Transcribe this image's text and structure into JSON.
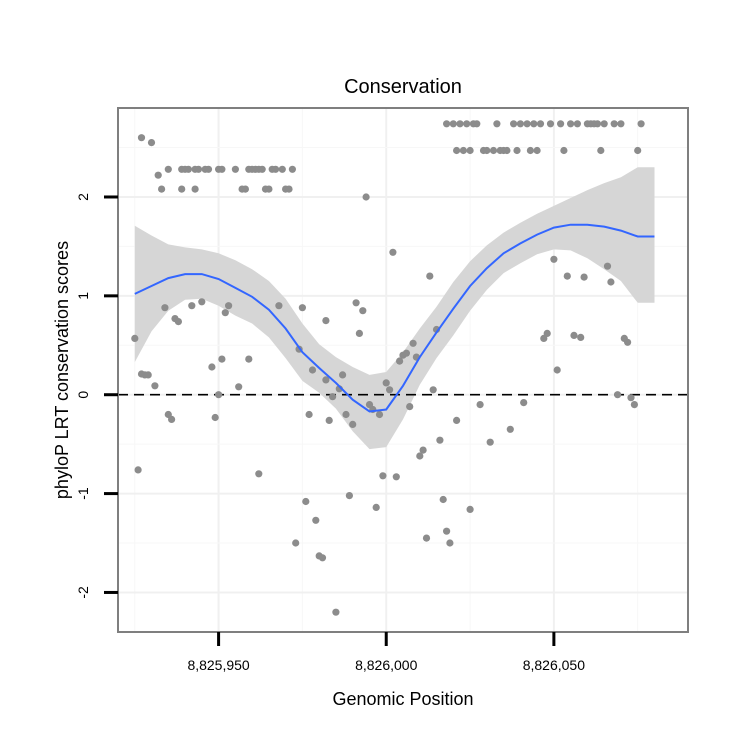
{
  "chart_data": {
    "type": "scatter",
    "title": "Conservation",
    "xlabel": "Genomic Position",
    "ylabel": "phyloP LRT conservation scores",
    "xlim": [
      8825920,
      8826090
    ],
    "ylim": [
      -2.4,
      2.9
    ],
    "xticks": [
      {
        "value": 8825950,
        "label": "8,825,950"
      },
      {
        "value": 8826000,
        "label": "8,826,000"
      },
      {
        "value": 8826050,
        "label": "8,826,050"
      }
    ],
    "yticks": [
      {
        "value": -2,
        "label": "-2"
      },
      {
        "value": -1,
        "label": "-1"
      },
      {
        "value": 0,
        "label": "0"
      },
      {
        "value": 1,
        "label": "1"
      },
      {
        "value": 2,
        "label": "2"
      }
    ],
    "grid": true,
    "reference_line": {
      "y": 0,
      "style": "dashed"
    },
    "colors": {
      "points": "#8c8c8c",
      "smooth": "#3366ff",
      "ribbon": "#d6d6d6",
      "panel_border": "#7f7f7f"
    },
    "series": [
      {
        "name": "phyloP scores",
        "type": "scatter",
        "points": [
          [
            8825925,
            0.57
          ],
          [
            8825926,
            -0.76
          ],
          [
            8825927,
            0.21
          ],
          [
            8825927,
            2.6
          ],
          [
            8825928,
            0.2
          ],
          [
            8825929,
            0.2
          ],
          [
            8825930,
            2.55
          ],
          [
            8825931,
            0.09
          ],
          [
            8825932,
            2.22
          ],
          [
            8825933,
            2.08
          ],
          [
            8825934,
            0.88
          ],
          [
            8825935,
            2.28
          ],
          [
            8825935,
            -0.2
          ],
          [
            8825936,
            -0.25
          ],
          [
            8825937,
            0.77
          ],
          [
            8825938,
            0.74
          ],
          [
            8825939,
            2.28
          ],
          [
            8825939,
            2.08
          ],
          [
            8825940,
            2.28
          ],
          [
            8825941,
            2.28
          ],
          [
            8825942,
            0.9
          ],
          [
            8825943,
            2.28
          ],
          [
            8825943,
            2.08
          ],
          [
            8825944,
            2.28
          ],
          [
            8825945,
            0.94
          ],
          [
            8825946,
            2.28
          ],
          [
            8825947,
            2.28
          ],
          [
            8825948,
            0.28
          ],
          [
            8825949,
            -0.23
          ],
          [
            8825950,
            0.0
          ],
          [
            8825950,
            2.28
          ],
          [
            8825951,
            0.36
          ],
          [
            8825951,
            2.28
          ],
          [
            8825952,
            0.83
          ],
          [
            8825953,
            0.9
          ],
          [
            8825955,
            2.28
          ],
          [
            8825956,
            0.08
          ],
          [
            8825957,
            2.08
          ],
          [
            8825958,
            2.08
          ],
          [
            8825959,
            0.36
          ],
          [
            8825959,
            2.28
          ],
          [
            8825960,
            2.28
          ],
          [
            8825961,
            2.28
          ],
          [
            8825962,
            -0.8
          ],
          [
            8825962,
            2.28
          ],
          [
            8825963,
            2.28
          ],
          [
            8825964,
            2.08
          ],
          [
            8825965,
            2.08
          ],
          [
            8825966,
            2.28
          ],
          [
            8825967,
            2.28
          ],
          [
            8825968,
            0.9
          ],
          [
            8825969,
            2.28
          ],
          [
            8825970,
            2.08
          ],
          [
            8825971,
            2.08
          ],
          [
            8825972,
            2.28
          ],
          [
            8825973,
            -1.5
          ],
          [
            8825974,
            0.46
          ],
          [
            8825975,
            0.88
          ],
          [
            8825976,
            -1.08
          ],
          [
            8825977,
            -0.2
          ],
          [
            8825978,
            0.25
          ],
          [
            8825979,
            -1.27
          ],
          [
            8825980,
            -1.63
          ],
          [
            8825981,
            -1.65
          ],
          [
            8825982,
            0.75
          ],
          [
            8825982,
            0.15
          ],
          [
            8825983,
            -0.26
          ],
          [
            8825984,
            -0.02
          ],
          [
            8825985,
            -2.2
          ],
          [
            8825986,
            0.06
          ],
          [
            8825987,
            0.2
          ],
          [
            8825988,
            -0.2
          ],
          [
            8825989,
            -1.02
          ],
          [
            8825990,
            -0.3
          ],
          [
            8825991,
            0.93
          ],
          [
            8825992,
            0.62
          ],
          [
            8825993,
            0.85
          ],
          [
            8825994,
            2.0
          ],
          [
            8825995,
            -0.1
          ],
          [
            8825996,
            -0.15
          ],
          [
            8825997,
            -1.14
          ],
          [
            8825998,
            -0.2
          ],
          [
            8825999,
            -0.82
          ],
          [
            8826000,
            0.12
          ],
          [
            8826001,
            0.05
          ],
          [
            8826002,
            1.44
          ],
          [
            8826003,
            -0.83
          ],
          [
            8826004,
            0.34
          ],
          [
            8826005,
            0.4
          ],
          [
            8826006,
            0.42
          ],
          [
            8826007,
            -0.12
          ],
          [
            8826008,
            0.52
          ],
          [
            8826009,
            0.38
          ],
          [
            8826010,
            -0.62
          ],
          [
            8826011,
            -0.56
          ],
          [
            8826012,
            -1.45
          ],
          [
            8826013,
            1.2
          ],
          [
            8826014,
            0.05
          ],
          [
            8826015,
            0.66
          ],
          [
            8826016,
            -0.46
          ],
          [
            8826017,
            -1.06
          ],
          [
            8826018,
            2.74
          ],
          [
            8826018,
            -1.38
          ],
          [
            8826019,
            -1.5
          ],
          [
            8826020,
            2.74
          ],
          [
            8826021,
            -0.26
          ],
          [
            8826021,
            2.47
          ],
          [
            8826022,
            2.74
          ],
          [
            8826023,
            2.47
          ],
          [
            8826024,
            2.74
          ],
          [
            8826025,
            -1.16
          ],
          [
            8826025,
            2.47
          ],
          [
            8826026,
            2.74
          ],
          [
            8826027,
            2.74
          ],
          [
            8826028,
            -0.1
          ],
          [
            8826029,
            2.47
          ],
          [
            8826030,
            2.47
          ],
          [
            8826031,
            -0.48
          ],
          [
            8826032,
            2.47
          ],
          [
            8826033,
            2.74
          ],
          [
            8826034,
            2.47
          ],
          [
            8826035,
            2.47
          ],
          [
            8826036,
            2.47
          ],
          [
            8826037,
            -0.35
          ],
          [
            8826038,
            2.74
          ],
          [
            8826039,
            2.47
          ],
          [
            8826040,
            2.74
          ],
          [
            8826041,
            -0.08
          ],
          [
            8826042,
            2.74
          ],
          [
            8826043,
            2.47
          ],
          [
            8826044,
            2.74
          ],
          [
            8826045,
            2.47
          ],
          [
            8826046,
            2.74
          ],
          [
            8826047,
            0.57
          ],
          [
            8826048,
            0.62
          ],
          [
            8826049,
            2.74
          ],
          [
            8826050,
            1.37
          ],
          [
            8826051,
            0.25
          ],
          [
            8826052,
            2.74
          ],
          [
            8826053,
            2.47
          ],
          [
            8826054,
            1.2
          ],
          [
            8826055,
            2.74
          ],
          [
            8826056,
            0.6
          ],
          [
            8826057,
            2.74
          ],
          [
            8826058,
            0.58
          ],
          [
            8826059,
            1.19
          ],
          [
            8826060,
            2.74
          ],
          [
            8826061,
            2.74
          ],
          [
            8826062,
            2.74
          ],
          [
            8826063,
            2.74
          ],
          [
            8826064,
            2.47
          ],
          [
            8826065,
            2.74
          ],
          [
            8826066,
            1.3
          ],
          [
            8826067,
            1.14
          ],
          [
            8826068,
            2.74
          ],
          [
            8826069,
            0.0
          ],
          [
            8826070,
            2.74
          ],
          [
            8826071,
            0.57
          ],
          [
            8826072,
            0.53
          ],
          [
            8826073,
            -0.03
          ],
          [
            8826074,
            -0.1
          ],
          [
            8826075,
            2.47
          ],
          [
            8826076,
            2.74
          ]
        ]
      },
      {
        "name": "loess fit",
        "type": "line",
        "x": [
          8825925,
          8825930,
          8825935,
          8825940,
          8825945,
          8825950,
          8825955,
          8825960,
          8825965,
          8825970,
          8825975,
          8825980,
          8825985,
          8825990,
          8825995,
          8826000,
          8826005,
          8826010,
          8826015,
          8826020,
          8826025,
          8826030,
          8826035,
          8826040,
          8826045,
          8826050,
          8826055,
          8826060,
          8826065,
          8826070,
          8826075,
          8826080
        ],
        "y": [
          1.02,
          1.1,
          1.18,
          1.22,
          1.22,
          1.17,
          1.08,
          0.99,
          0.86,
          0.67,
          0.43,
          0.27,
          0.12,
          -0.05,
          -0.17,
          -0.15,
          0.09,
          0.38,
          0.63,
          0.87,
          1.1,
          1.28,
          1.43,
          1.53,
          1.62,
          1.69,
          1.72,
          1.72,
          1.7,
          1.66,
          1.6,
          1.6
        ],
        "ci_lower": [
          0.33,
          0.64,
          0.85,
          0.96,
          0.97,
          0.9,
          0.8,
          0.72,
          0.58,
          0.37,
          0.14,
          0.02,
          -0.14,
          -0.37,
          -0.55,
          -0.53,
          -0.25,
          0.1,
          0.37,
          0.6,
          0.85,
          1.06,
          1.23,
          1.33,
          1.42,
          1.47,
          1.46,
          1.38,
          1.27,
          1.15,
          0.93,
          0.93
        ],
        "ci_upper": [
          1.71,
          1.61,
          1.52,
          1.49,
          1.47,
          1.43,
          1.36,
          1.27,
          1.15,
          0.97,
          0.72,
          0.51,
          0.38,
          0.28,
          0.2,
          0.23,
          0.43,
          0.67,
          0.89,
          1.14,
          1.35,
          1.51,
          1.64,
          1.74,
          1.83,
          1.91,
          1.99,
          2.07,
          2.14,
          2.2,
          2.3,
          2.3
        ]
      }
    ]
  }
}
